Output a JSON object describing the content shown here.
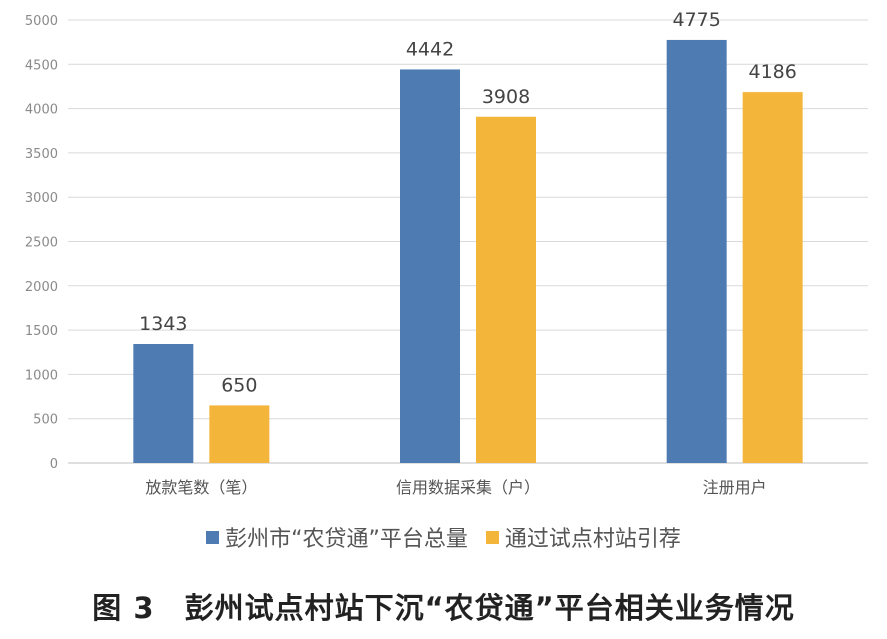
{
  "chart_data": {
    "type": "bar",
    "title": "",
    "xlabel": "",
    "ylabel": "",
    "ylim": [
      0,
      5000
    ],
    "yticks": [
      0,
      500,
      1000,
      1500,
      2000,
      2500,
      3000,
      3500,
      4000,
      4500,
      5000
    ],
    "grid": true,
    "legend_position": "bottom",
    "categories": [
      "放款笔数（笔）",
      "信用数据采集（户）",
      "注册用户"
    ],
    "series": [
      {
        "name": "彭州市“农贷通”平台总量",
        "color": "#4e7cb2",
        "values": [
          1343,
          4442,
          4775
        ]
      },
      {
        "name": "通过试点村站引荐",
        "color": "#f4b63a",
        "values": [
          650,
          3908,
          4186
        ]
      }
    ]
  },
  "caption": "图 3　彭州试点村站下沉“农贷通”平台相关业务情况"
}
